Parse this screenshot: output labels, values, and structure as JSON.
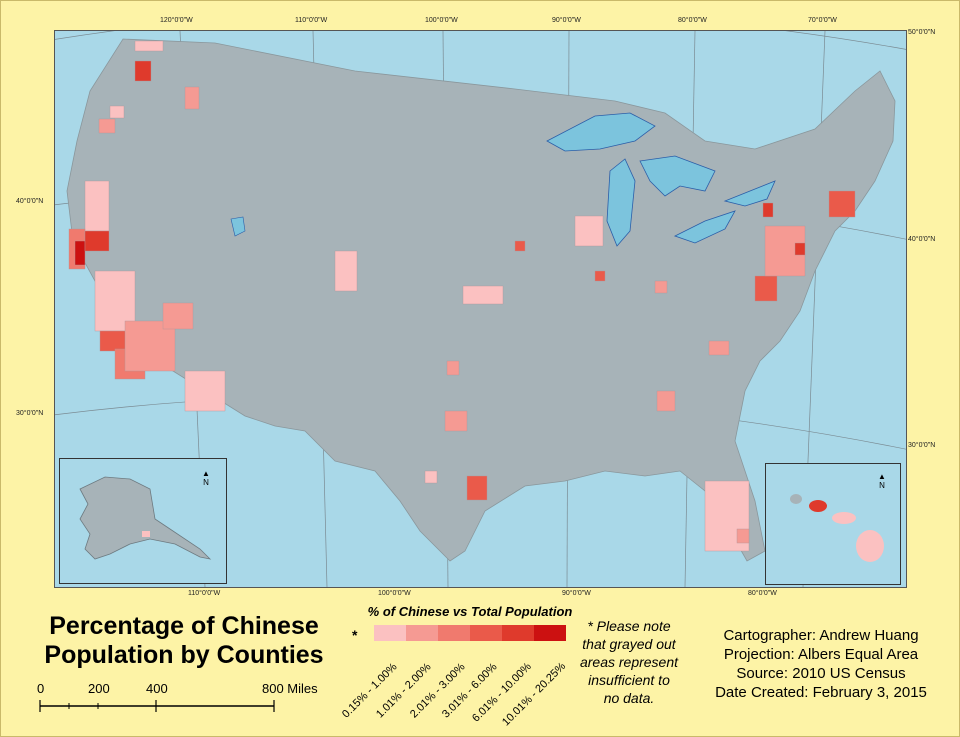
{
  "map": {
    "graticule": {
      "top": [
        "120°0'0\"W",
        "110°0'0\"W",
        "100°0'0\"W",
        "90°0'0\"W",
        "80°0'0\"W",
        "70°0'0\"W"
      ],
      "bottom": [
        "110°0'0\"W",
        "100°0'0\"W",
        "90°0'0\"W",
        "80°0'0\"W"
      ],
      "left": [
        "40°0'0\"N",
        "30°0'0\"N"
      ],
      "right": [
        "50°0'0\"N",
        "40°0'0\"N",
        "30°0'0\"N"
      ]
    },
    "north_label": "N",
    "colors": {
      "water": "#a9d8e8",
      "land_nodata": "#a7b3b8",
      "background": "#fdf3a6"
    }
  },
  "title": {
    "line1": "Percentage of Chinese",
    "line2": "Population by Counties"
  },
  "legend": {
    "title": "% of Chinese vs Total Population",
    "star": "*",
    "classes": [
      {
        "label": "0.15% - 1.00%",
        "color": "#fbc1c1"
      },
      {
        "label": "1.01% - 2.00%",
        "color": "#f59a93"
      },
      {
        "label": "2.01% - 3.00%",
        "color": "#f07a6e"
      },
      {
        "label": "3.01% - 6.00%",
        "color": "#ea5a4a"
      },
      {
        "label": "6.01% - 10.00%",
        "color": "#df3a2c"
      },
      {
        "label": "10.01% - 20.25%",
        "color": "#cc1111"
      }
    ]
  },
  "note": {
    "line1": "* Please note",
    "line2": "that grayed out",
    "line3": "areas represent",
    "line4": "insufficient to",
    "line5": "no data."
  },
  "credits": {
    "cartographer": "Cartographer: Andrew Huang",
    "projection": "Projection: Albers Equal Area",
    "source": "Source: 2010 US Census",
    "date": "Date Created: February 3, 2015"
  },
  "scale_bar": {
    "labels": [
      "0",
      "200",
      "400",
      "800 Miles"
    ]
  }
}
